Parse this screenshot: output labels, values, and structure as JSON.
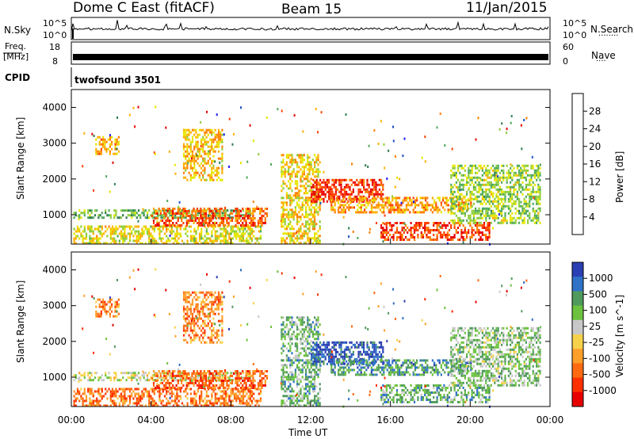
{
  "header": {
    "station": "Dome C East (fitACF)",
    "beam": "Beam 15",
    "date": "11/Jan/2015"
  },
  "status": {
    "nsky_label": "N.Sky",
    "nsky_ticks": [
      "10^5",
      "10^0"
    ],
    "nsearch_label": "N.Search",
    "freq_label_line1": "Freq.",
    "freq_label_line2": "[MHz]",
    "freq_ticks": [
      "18",
      "8"
    ],
    "nave_label": "Nave",
    "nave_ticks": [
      "60",
      "0"
    ],
    "cpid_label": "CPID",
    "cpid_value": "twofsound 3501"
  },
  "x_axis": {
    "label": "Time UT",
    "ticks": [
      "00:00",
      "04:00",
      "08:00",
      "12:00",
      "16:00",
      "20:00",
      "00:00"
    ],
    "range_hours": [
      0,
      24
    ]
  },
  "chart_data": [
    {
      "type": "heatmap",
      "name": "power",
      "ylabel": "Slant Range [km]",
      "y_ticks": [
        "1000",
        "2000",
        "3000",
        "4000"
      ],
      "ylim": [
        180,
        4500
      ],
      "colorbar_label": "Power [dB]",
      "colorbar_ticks": [
        "4",
        "8",
        "12",
        "16",
        "20",
        "24",
        "28"
      ],
      "colorbar_colors": [
        "#1a1aff",
        "#1e50c8",
        "#2e7d4e",
        "#4faa5c",
        "#8fce3a",
        "#e6e600",
        "#ffb000",
        "#ff7f00",
        "#ff4000",
        "#e80000"
      ],
      "bands": [
        {
          "t0": 0.1,
          "t1": 9.5,
          "r0": 200,
          "r1": 700,
          "level": 0.55
        },
        {
          "t0": 0.1,
          "t1": 9.0,
          "r0": 950,
          "r1": 1150,
          "level": 0.35
        },
        {
          "t0": 4.0,
          "t1": 9.8,
          "r0": 700,
          "r1": 1200,
          "level": 0.85
        },
        {
          "t0": 10.5,
          "t1": 12.5,
          "r0": 200,
          "r1": 2700,
          "level": 0.6
        },
        {
          "t0": 12.0,
          "t1": 15.6,
          "r0": 1400,
          "r1": 2000,
          "level": 0.95
        },
        {
          "t0": 13.0,
          "t1": 20.0,
          "r0": 1100,
          "r1": 1500,
          "level": 0.7
        },
        {
          "t0": 15.5,
          "t1": 21.0,
          "r0": 300,
          "r1": 800,
          "level": 0.9
        },
        {
          "t0": 19.0,
          "t1": 23.5,
          "r0": 800,
          "r1": 2400,
          "level": 0.45
        },
        {
          "t0": 1.2,
          "t1": 2.4,
          "r0": 2700,
          "r1": 3200,
          "level": 0.7
        },
        {
          "t0": 5.6,
          "t1": 7.6,
          "r0": 2000,
          "r1": 3400,
          "level": 0.65
        }
      ]
    },
    {
      "type": "heatmap",
      "name": "velocity",
      "ylabel": "Slant Range [km]",
      "y_ticks": [
        "1000",
        "2000",
        "3000",
        "4000"
      ],
      "ylim": [
        180,
        4500
      ],
      "colorbar_label": "Velocity [m s^-1]",
      "colorbar_ticks": [
        "1000",
        "500",
        "100",
        "25",
        "-25",
        "-100",
        "-500",
        "-1000"
      ],
      "colorbar_colors": [
        "#2a3fb3",
        "#2f72c8",
        "#4f9a5c",
        "#6cc23f",
        "#c8c8c8",
        "#f6d24a",
        "#ff9f2a",
        "#ff6a10",
        "#ff3000",
        "#e80000"
      ],
      "bands": [
        {
          "t0": 0.1,
          "t1": 9.5,
          "r0": 200,
          "r1": 700,
          "level": 0.75
        },
        {
          "t0": 0.1,
          "t1": 9.0,
          "r0": 950,
          "r1": 1150,
          "level": 0.45
        },
        {
          "t0": 4.0,
          "t1": 9.8,
          "r0": 700,
          "r1": 1200,
          "level": 0.8
        },
        {
          "t0": 10.5,
          "t1": 12.5,
          "r0": 200,
          "r1": 2700,
          "level": 0.3
        },
        {
          "t0": 12.0,
          "t1": 15.6,
          "r0": 1400,
          "r1": 2000,
          "level": 0.05
        },
        {
          "t0": 13.0,
          "t1": 20.0,
          "r0": 1100,
          "r1": 1500,
          "level": 0.2
        },
        {
          "t0": 15.5,
          "t1": 21.0,
          "r0": 300,
          "r1": 800,
          "level": 0.28
        },
        {
          "t0": 19.0,
          "t1": 23.5,
          "r0": 800,
          "r1": 2400,
          "level": 0.35
        },
        {
          "t0": 1.2,
          "t1": 2.4,
          "r0": 2700,
          "r1": 3200,
          "level": 0.75
        },
        {
          "t0": 5.6,
          "t1": 7.6,
          "r0": 2000,
          "r1": 3400,
          "level": 0.72
        }
      ]
    }
  ]
}
